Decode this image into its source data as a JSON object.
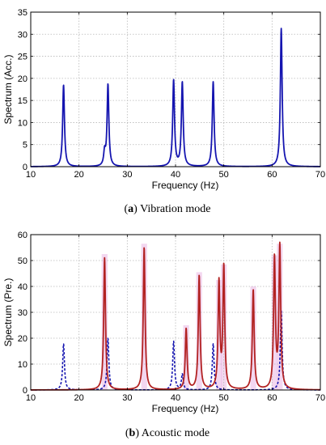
{
  "chart_data": [
    {
      "type": "line",
      "caption": {
        "letter": "a",
        "text": "Vibration mode"
      },
      "xlabel": "Frequency (Hz)",
      "ylabel": "Spectrum (Acc.)",
      "xlim": [
        10,
        70
      ],
      "ylim": [
        0,
        35
      ],
      "xticks": [
        "10",
        "20",
        "30",
        "40",
        "50",
        "60",
        "70"
      ],
      "yticks": [
        "0",
        "5",
        "10",
        "15",
        "20",
        "25",
        "30",
        "35"
      ],
      "grid": true,
      "series": [
        {
          "color": "#1515b0",
          "style": "solid",
          "peaks": [
            {
              "x": 16.8,
              "y": 18.5
            },
            {
              "x": 25.3,
              "y": 3.0
            },
            {
              "x": 26.0,
              "y": 18.5
            },
            {
              "x": 39.6,
              "y": 19.5
            },
            {
              "x": 41.4,
              "y": 19.0
            },
            {
              "x": 47.8,
              "y": 19.2
            },
            {
              "x": 61.9,
              "y": 31.3
            }
          ]
        }
      ]
    },
    {
      "type": "line",
      "caption": {
        "letter": "b",
        "text": "Acoustic mode"
      },
      "xlabel": "Frequency (Hz)",
      "ylabel": "Spectrum (Pre.)",
      "xlim": [
        10,
        70
      ],
      "ylim": [
        0,
        60
      ],
      "xticks": [
        "10",
        "20",
        "30",
        "40",
        "50",
        "60",
        "70"
      ],
      "yticks": [
        "0",
        "10",
        "20",
        "30",
        "40",
        "50",
        "60"
      ],
      "grid": true,
      "series": [
        {
          "color": "#1515b0",
          "style": "dashed",
          "peaks": [
            {
              "x": 16.8,
              "y": 17.8
            },
            {
              "x": 26.0,
              "y": 20.0
            },
            {
              "x": 39.6,
              "y": 18.8
            },
            {
              "x": 41.4,
              "y": 6.0
            },
            {
              "x": 47.8,
              "y": 17.8
            },
            {
              "x": 61.9,
              "y": 30.5
            }
          ]
        },
        {
          "color": "#b22222",
          "style": "solid",
          "peaks": [
            {
              "x": 25.3,
              "y": 51.0
            },
            {
              "x": 33.5,
              "y": 55.0
            },
            {
              "x": 42.2,
              "y": 23.5
            },
            {
              "x": 44.9,
              "y": 44.0
            },
            {
              "x": 49.0,
              "y": 41.0
            },
            {
              "x": 50.0,
              "y": 47.0
            },
            {
              "x": 56.1,
              "y": 38.5
            },
            {
              "x": 60.5,
              "y": 50.5
            },
            {
              "x": 61.6,
              "y": 55.0
            }
          ]
        }
      ]
    }
  ],
  "colors": {
    "highlight": "#e9b6e4",
    "grid": "#b8b8b8",
    "axis": "#000000"
  }
}
